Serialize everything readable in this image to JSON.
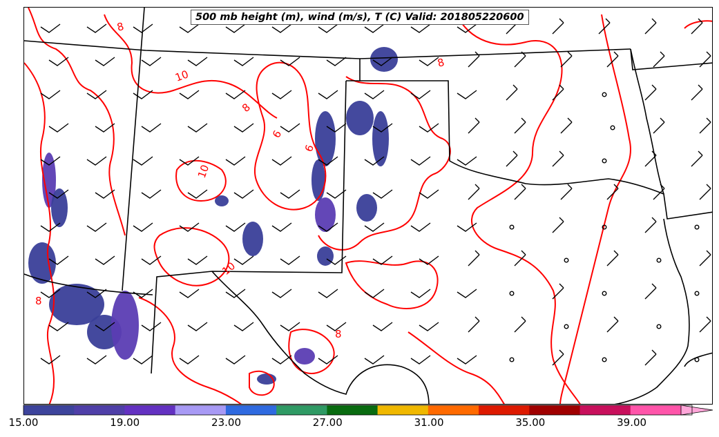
{
  "title": "500 mb height (m), wind (m/s), T (C) Valid: 201805220600",
  "colors": {
    "temperature_contour": "#ff0000",
    "boundaries": "#000000",
    "fill_low": "#3a3f99",
    "fill_mid": "#5b3db3",
    "fill_high": "#7a6cf0"
  },
  "contour_labels": [
    {
      "text": "8",
      "id": "nw"
    },
    {
      "text": "10",
      "id": "nm"
    },
    {
      "text": "8",
      "id": "nc"
    },
    {
      "text": "6",
      "id": "c1"
    },
    {
      "text": "6",
      "id": "c2"
    },
    {
      "text": "10",
      "id": "c3"
    },
    {
      "text": "8",
      "id": "ne"
    },
    {
      "text": "10",
      "id": "s1"
    },
    {
      "text": "8",
      "id": "w1"
    },
    {
      "text": "8",
      "id": "s2"
    }
  ],
  "colorbar": {
    "ticks": [
      "15.00",
      "19.00",
      "23.00",
      "27.00",
      "31.00",
      "35.00",
      "39.00"
    ],
    "colors": [
      "#3d449c",
      "#4f3fa8",
      "#6331c1",
      "#a89af5",
      "#2f6ae0",
      "#2f9a64",
      "#096b10",
      "#f0b800",
      "#ff6a00",
      "#dd1a00",
      "#a00000",
      "#c8105c",
      "#ff55aa",
      "#ffa6d9"
    ]
  },
  "wind_barb_fields": {
    "barb_rows": 11,
    "barb_cols": 15,
    "calm_station_symbol": "circle"
  }
}
